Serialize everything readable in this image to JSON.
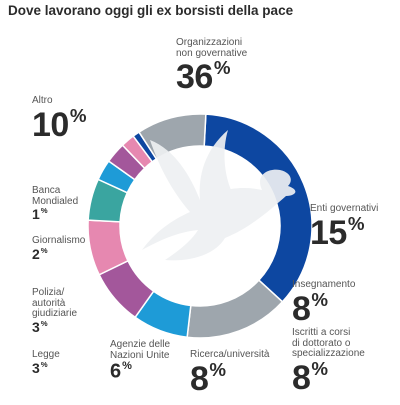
{
  "title": "Dove lavorano oggi gli ex borsisti della pace",
  "chart_data": {
    "type": "pie",
    "donut": true,
    "start_angle_deg": -87,
    "slices": [
      {
        "label": "Organizzazioni\nnon governative",
        "value": 36,
        "display": "36",
        "color": "#0d47a1"
      },
      {
        "label": "Enti governativi",
        "value": 15,
        "display": "15",
        "color": "#9ea6ad"
      },
      {
        "label": "Insegnamento",
        "value": 8,
        "display": "8",
        "color": "#1e9bd7"
      },
      {
        "label": "Iscritti a corsi\ndi dottorato o\nspecializzazione",
        "value": 8,
        "display": "8",
        "color": "#a3579b"
      },
      {
        "label": "Ricerca/università",
        "value": 8,
        "display": "8",
        "color": "#e688b0"
      },
      {
        "label": "Agenzie delle\nNazioni Unite",
        "value": 6,
        "display": "6",
        "color": "#3aa5a0"
      },
      {
        "label": "Legge",
        "value": 3,
        "display": "3",
        "color": "#1e9bd7"
      },
      {
        "label": "Polizia/\nautorità\ngiudiziarie",
        "value": 3,
        "display": "3",
        "color": "#a3579b"
      },
      {
        "label": "Giornalismo",
        "value": 2,
        "display": "2",
        "color": "#e688b0"
      },
      {
        "label": "Banca\nMondialed",
        "value": 1,
        "display": "1",
        "color": "#0d47a1"
      },
      {
        "label": "Altro",
        "value": 10,
        "display": "10",
        "color": "#9ea6ad"
      }
    ],
    "unit": "%"
  }
}
